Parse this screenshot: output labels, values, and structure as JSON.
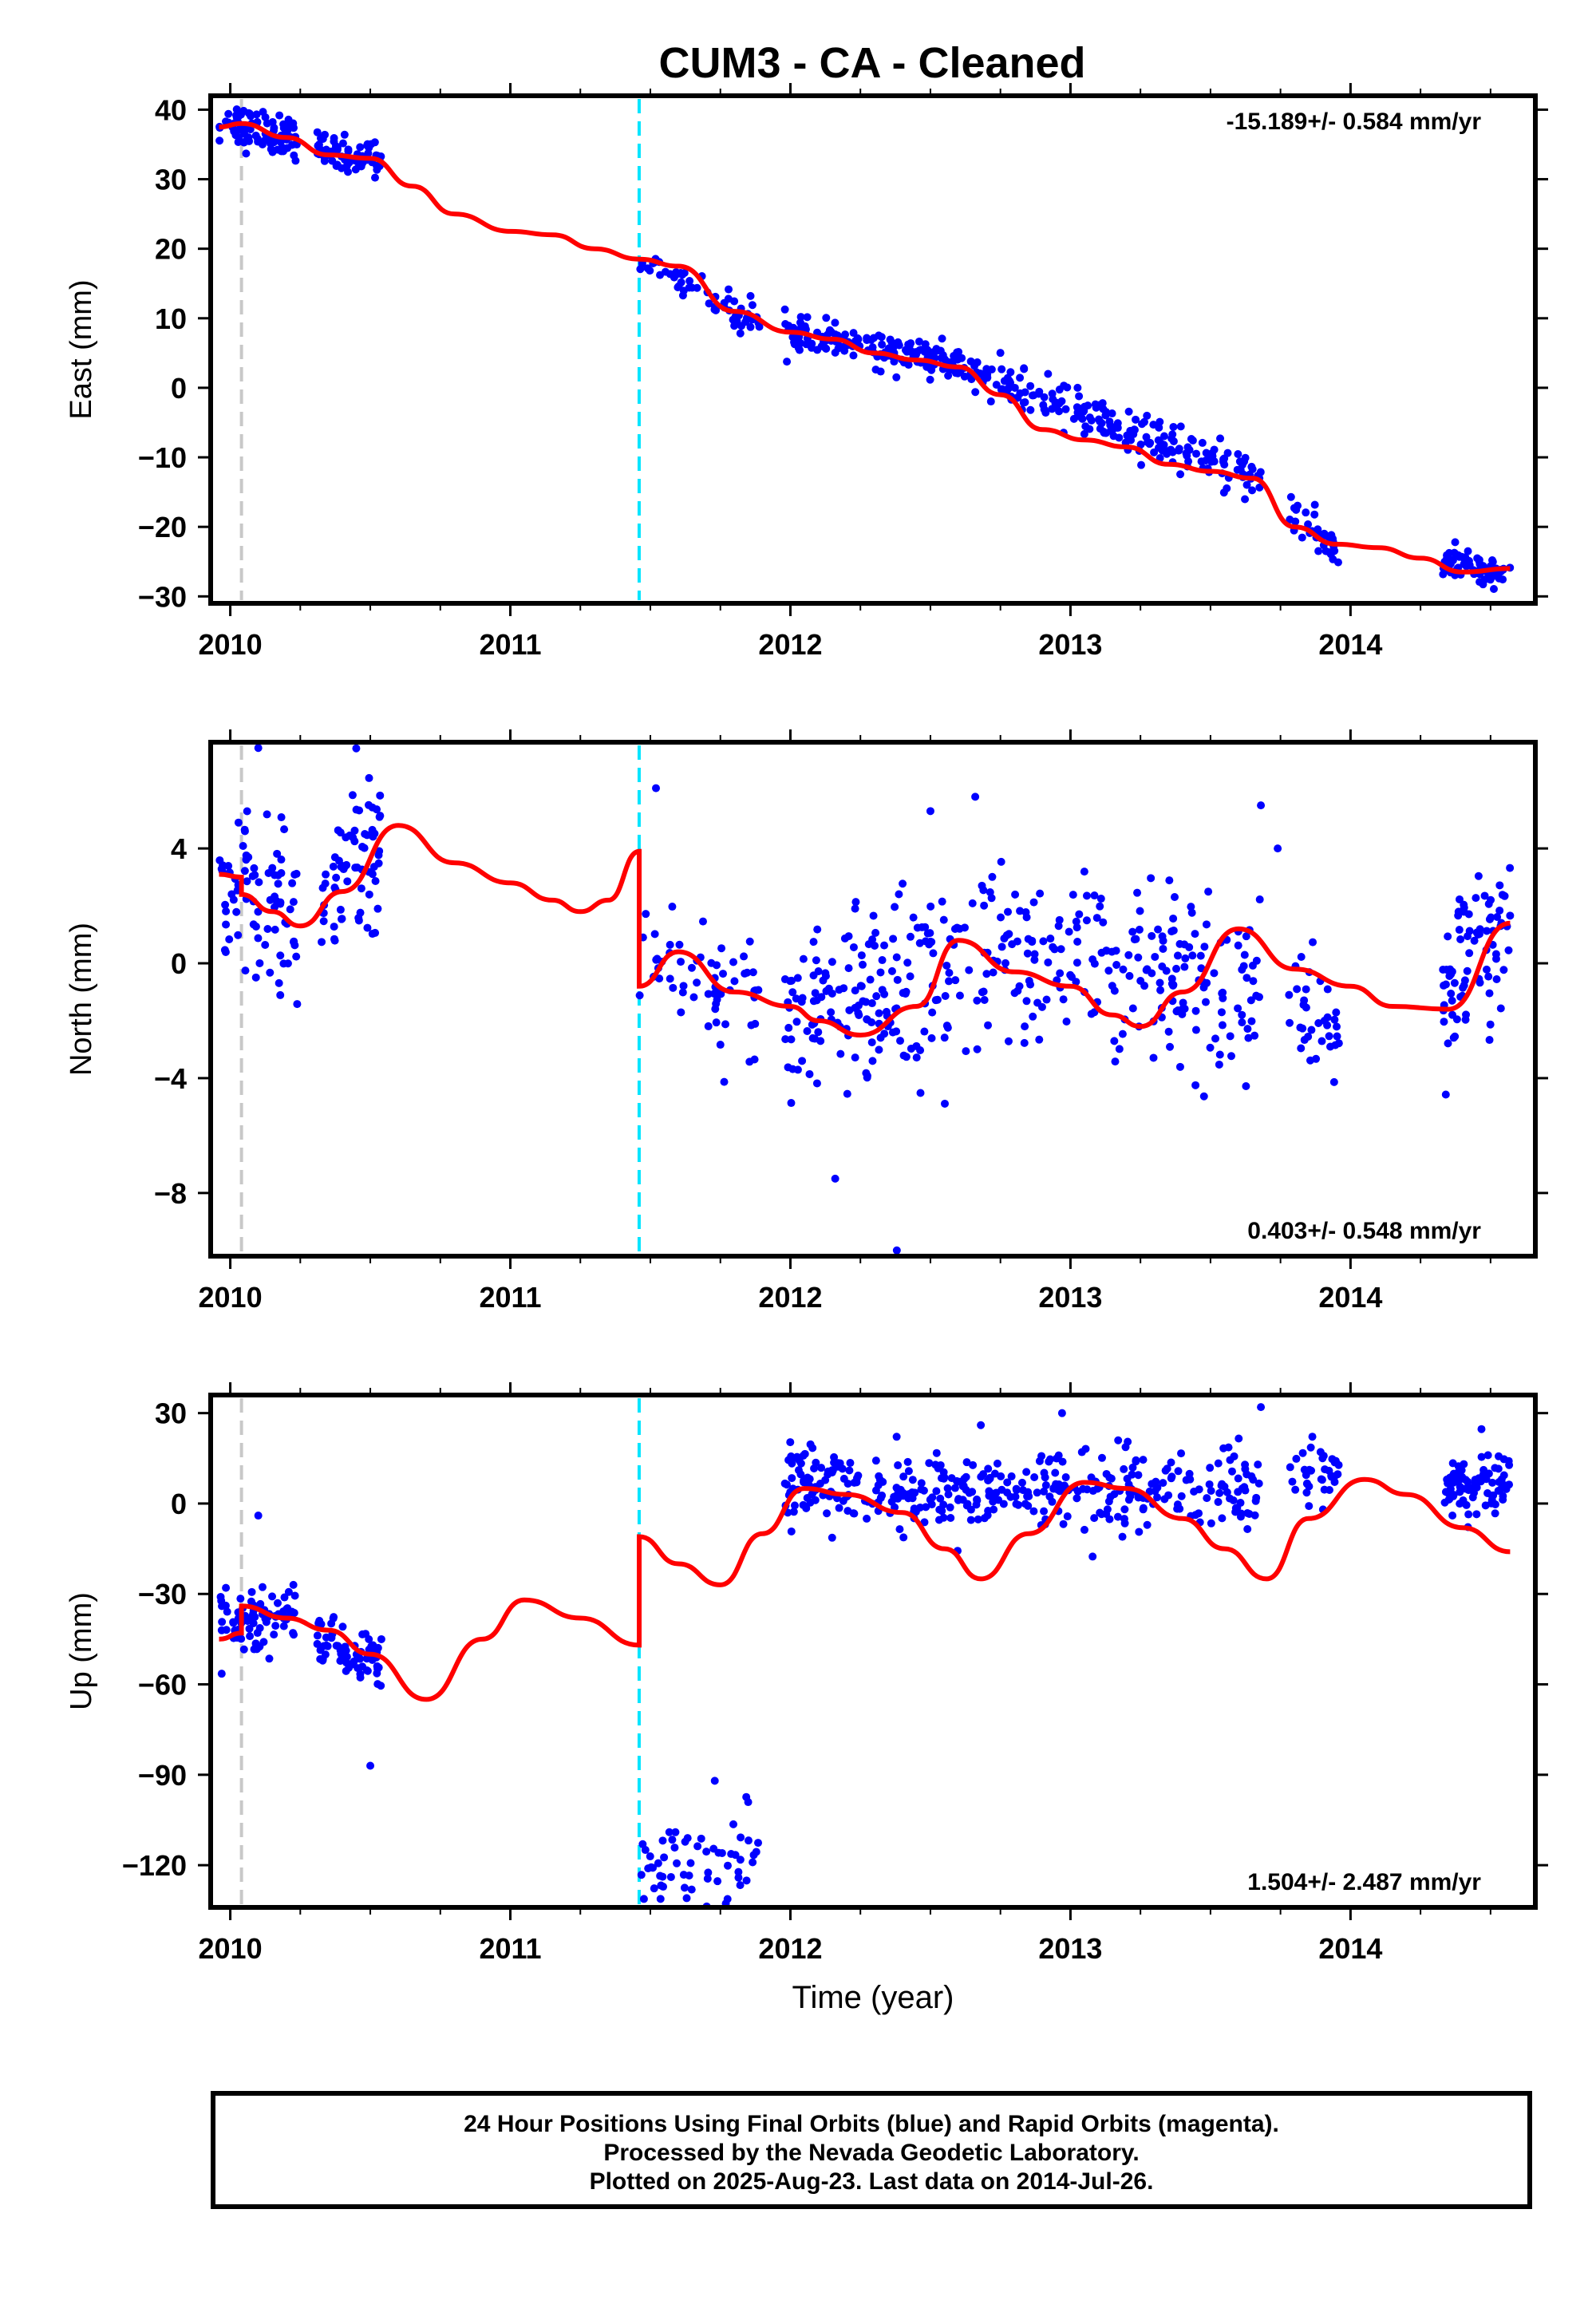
{
  "title": "CUM3  - CA - Cleaned",
  "footer": {
    "line1": "24 Hour Positions Using Final Orbits (blue) and Rapid Orbits (magenta).",
    "line2": "Processed by the Nevada Geodetic Laboratory.",
    "line3": "Plotted on 2025-Aug-23. Last data on 2014-Jul-26."
  },
  "colors": {
    "points": "#0000ff",
    "model": "#ff0000",
    "event_grey": "#c8c8c8",
    "event_cyan": "#00e5ff"
  },
  "chart_data": [
    {
      "type": "scatter",
      "panel": "east",
      "title": "CUM3  - CA - Cleaned",
      "xlabel": "",
      "ylabel": "East (mm)",
      "xlim": [
        2009.93,
        2014.66
      ],
      "ylim": [
        -31,
        42
      ],
      "xticks": [
        2010,
        2011,
        2012,
        2013,
        2014
      ],
      "xtick_labels": [
        "2010",
        "2011",
        "2012",
        "2013",
        "2014"
      ],
      "yticks": [
        -30,
        -20,
        -10,
        0,
        10,
        20,
        30,
        40
      ],
      "ytick_labels": [
        "−30",
        "−20",
        "−10",
        "0",
        "10",
        "20",
        "30",
        "40"
      ],
      "rate_label": "-15.189+/- 0.584 mm/yr",
      "rate_position": "top-right",
      "events": [
        {
          "x": 2010.04,
          "color": "grey"
        },
        {
          "x": 2011.46,
          "color": "cyan"
        }
      ],
      "observation_segments": [
        {
          "start": 2009.96,
          "end": 2010.24,
          "trend": [
            38,
            36
          ],
          "noise": 1.5,
          "count": 90
        },
        {
          "start": 2010.31,
          "end": 2010.54,
          "trend": [
            34,
            33
          ],
          "noise": 1.3,
          "count": 70
        },
        {
          "start": 2011.46,
          "end": 2011.89,
          "trend": [
            19,
            9
          ],
          "noise": 1.2,
          "count": 60
        },
        {
          "start": 2011.98,
          "end": 2012.64,
          "trend": [
            8,
            3
          ],
          "noise": 1.2,
          "count": 170
        },
        {
          "start": 2012.64,
          "end": 2013.68,
          "trend": [
            2,
            -13
          ],
          "noise": 1.5,
          "count": 220
        },
        {
          "start": 2013.78,
          "end": 2013.96,
          "trend": [
            -18,
            -23
          ],
          "noise": 1.5,
          "count": 35
        },
        {
          "start": 2014.33,
          "end": 2014.57,
          "trend": [
            -25,
            -27
          ],
          "noise": 1.0,
          "count": 80
        }
      ],
      "outliers": [
        [
          2012.92,
          2
        ]
      ],
      "model_series": {
        "name": "",
        "x": [
          2009.96,
          2010.04,
          2010.2,
          2010.35,
          2010.5,
          2010.65,
          2010.8,
          2011.0,
          2011.15,
          2011.3,
          2011.46,
          2011.6,
          2011.8,
          2012.0,
          2012.15,
          2012.3,
          2012.45,
          2012.6,
          2012.75,
          2012.9,
          2013.05,
          2013.2,
          2013.35,
          2013.5,
          2013.65,
          2013.8,
          2013.95,
          2014.1,
          2014.25,
          2014.4,
          2014.57
        ],
        "y": [
          37.5,
          38,
          36,
          33.5,
          33,
          29,
          25,
          22.5,
          22,
          20,
          18.5,
          17.5,
          11,
          8,
          7,
          5,
          4,
          3,
          -1,
          -6,
          -7.5,
          -8.5,
          -11,
          -12,
          -13,
          -20,
          -22.5,
          -23,
          -24.5,
          -26.5,
          -26
        ]
      }
    },
    {
      "type": "scatter",
      "panel": "north",
      "xlabel": "",
      "ylabel": "North (mm)",
      "xlim": [
        2009.93,
        2014.66
      ],
      "ylim": [
        -10.2,
        7.7
      ],
      "xticks": [
        2010,
        2011,
        2012,
        2013,
        2014
      ],
      "xtick_labels": [
        "2010",
        "2011",
        "2012",
        "2013",
        "2014"
      ],
      "yticks": [
        -8,
        -4,
        0,
        4
      ],
      "ytick_labels": [
        "−8",
        "−4",
        "0",
        "4"
      ],
      "rate_label": "0.403+/- 0.548 mm/yr",
      "rate_position": "bottom-right",
      "events": [
        {
          "x": 2010.04,
          "color": "grey"
        },
        {
          "x": 2011.46,
          "color": "cyan"
        }
      ],
      "observation_segments": [
        {
          "start": 2009.96,
          "end": 2010.24,
          "trend": [
            3,
            1.5
          ],
          "noise": 1.4,
          "count": 80
        },
        {
          "start": 2010.31,
          "end": 2010.54,
          "trend": [
            2.5,
            4
          ],
          "noise": 1.6,
          "count": 70
        },
        {
          "start": 2011.46,
          "end": 2011.89,
          "trend": [
            0,
            -1
          ],
          "noise": 1.2,
          "count": 60
        },
        {
          "start": 2011.98,
          "end": 2012.64,
          "trend": [
            -2,
            -0.5
          ],
          "noise": 1.6,
          "count": 170
        },
        {
          "start": 2012.64,
          "end": 2013.68,
          "trend": [
            0.5,
            -1
          ],
          "noise": 1.5,
          "count": 220
        },
        {
          "start": 2013.78,
          "end": 2013.96,
          "trend": [
            -1,
            -3.5
          ],
          "noise": 1.3,
          "count": 35
        },
        {
          "start": 2014.33,
          "end": 2014.57,
          "trend": [
            -1,
            1.5
          ],
          "noise": 1.3,
          "count": 80
        }
      ],
      "outliers": [
        [
          2010.1,
          7.5
        ],
        [
          2011.52,
          6.1
        ],
        [
          2012.16,
          -7.5
        ],
        [
          2012.38,
          -10
        ],
        [
          2012.5,
          5.3
        ],
        [
          2012.66,
          5.8
        ],
        [
          2013.68,
          5.5
        ],
        [
          2013.74,
          4
        ]
      ],
      "model_series": {
        "name": "",
        "x": [
          2009.96,
          2010.04,
          2010.04,
          2010.15,
          2010.25,
          2010.4,
          2010.6,
          2010.8,
          2011.0,
          2011.15,
          2011.25,
          2011.35,
          2011.46,
          2011.46,
          2011.6,
          2011.8,
          2012.0,
          2012.1,
          2012.25,
          2012.45,
          2012.6,
          2012.8,
          2013.0,
          2013.15,
          2013.25,
          2013.4,
          2013.6,
          2013.8,
          2014.0,
          2014.15,
          2014.35,
          2014.57
        ],
        "y": [
          3.1,
          3.0,
          2.4,
          1.8,
          1.3,
          2.5,
          4.8,
          3.5,
          2.8,
          2.2,
          1.8,
          2.2,
          3.9,
          -0.8,
          0.4,
          -1.0,
          -1.5,
          -2.0,
          -2.5,
          -1.5,
          0.8,
          -0.3,
          -0.8,
          -1.8,
          -2.2,
          -1.0,
          1.2,
          -0.2,
          -0.8,
          -1.5,
          -1.6,
          1.4
        ]
      }
    },
    {
      "type": "scatter",
      "panel": "up",
      "xlabel": "Time (year)",
      "ylabel": "Up (mm)",
      "xlim": [
        2009.93,
        2014.66
      ],
      "ylim": [
        -134,
        36
      ],
      "xticks": [
        2010,
        2011,
        2012,
        2013,
        2014
      ],
      "xtick_labels": [
        "2010",
        "2011",
        "2012",
        "2013",
        "2014"
      ],
      "yticks": [
        -120,
        -90,
        -60,
        -30,
        0,
        30
      ],
      "ytick_labels": [
        "−120",
        "−90",
        "−60",
        "−30",
        "0",
        "30"
      ],
      "rate_label": "1.504+/- 2.487 mm/yr",
      "rate_position": "bottom-right",
      "events": [
        {
          "x": 2010.04,
          "color": "grey"
        },
        {
          "x": 2011.46,
          "color": "cyan"
        }
      ],
      "observation_segments": [
        {
          "start": 2009.96,
          "end": 2010.24,
          "trend": [
            -40,
            -35
          ],
          "noise": 5,
          "count": 80
        },
        {
          "start": 2010.31,
          "end": 2010.54,
          "trend": [
            -45,
            -55
          ],
          "noise": 5,
          "count": 70
        },
        {
          "start": 2011.46,
          "end": 2011.89,
          "trend": [
            -120,
            -115
          ],
          "noise": 7,
          "count": 60
        },
        {
          "start": 2011.98,
          "end": 2012.64,
          "trend": [
            8,
            0
          ],
          "noise": 7,
          "count": 170
        },
        {
          "start": 2012.64,
          "end": 2013.68,
          "trend": [
            3,
            4
          ],
          "noise": 7,
          "count": 220
        },
        {
          "start": 2013.78,
          "end": 2013.96,
          "trend": [
            10,
            8
          ],
          "noise": 5,
          "count": 35
        },
        {
          "start": 2014.33,
          "end": 2014.57,
          "trend": [
            3,
            8
          ],
          "noise": 6,
          "count": 80
        }
      ],
      "outliers": [
        [
          2010.1,
          -4
        ],
        [
          2010.5,
          -87
        ],
        [
          2011.73,
          -92
        ],
        [
          2013.68,
          32
        ],
        [
          2012.97,
          30
        ],
        [
          2012.68,
          26
        ]
      ],
      "model_series": {
        "name": "",
        "x": [
          2009.96,
          2010.04,
          2010.04,
          2010.2,
          2010.35,
          2010.5,
          2010.7,
          2010.9,
          2011.05,
          2011.25,
          2011.46,
          2011.46,
          2011.6,
          2011.75,
          2011.9,
          2012.05,
          2012.2,
          2012.4,
          2012.55,
          2012.68,
          2012.85,
          2013.05,
          2013.2,
          2013.4,
          2013.55,
          2013.7,
          2013.85,
          2014.05,
          2014.2,
          2014.4,
          2014.57
        ],
        "y": [
          -45,
          -43,
          -34,
          -38,
          -42,
          -50,
          -65,
          -45,
          -32,
          -38,
          -47,
          -11,
          -20,
          -27,
          -10,
          5,
          3,
          -3,
          -15,
          -25,
          -10,
          7,
          5,
          -5,
          -15,
          -25,
          -5,
          8,
          3,
          -8,
          -16
        ]
      }
    }
  ]
}
